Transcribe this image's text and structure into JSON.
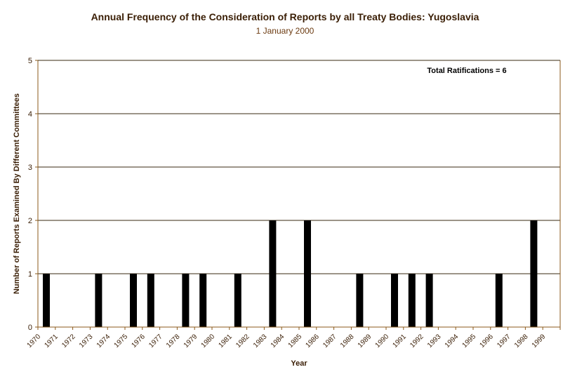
{
  "chart_data": {
    "type": "bar",
    "title": "Annual Frequency of the Consideration of Reports by all Treaty Bodies: Yugoslavia",
    "subtitle": "1 January 2000",
    "xlabel": "Year",
    "ylabel": "Number of Reports Examined By Different Committees",
    "annotation": "Total Ratifications = 6",
    "ylim": [
      0,
      5
    ],
    "yticks": [
      0,
      1,
      2,
      3,
      4,
      5
    ],
    "grid": true,
    "legend": "none",
    "colors": {
      "bar": "#000000",
      "grid": "#3a2a10",
      "axis": "#8b5a1b",
      "text": "#3a1e05"
    },
    "categories": [
      "1970",
      "1971",
      "1972",
      "1973",
      "1974",
      "1975",
      "1976",
      "1977",
      "1978",
      "1979",
      "1980",
      "1981",
      "1982",
      "1983",
      "1984",
      "1985",
      "1986",
      "1987",
      "1988",
      "1989",
      "1990",
      "1991",
      "1992",
      "1993",
      "1994",
      "1995",
      "1996",
      "1997",
      "1998",
      "1999"
    ],
    "values": [
      1,
      0,
      0,
      1,
      0,
      1,
      1,
      0,
      1,
      1,
      0,
      1,
      0,
      2,
      0,
      2,
      0,
      0,
      1,
      0,
      1,
      1,
      1,
      0,
      0,
      0,
      1,
      0,
      2,
      0
    ]
  }
}
